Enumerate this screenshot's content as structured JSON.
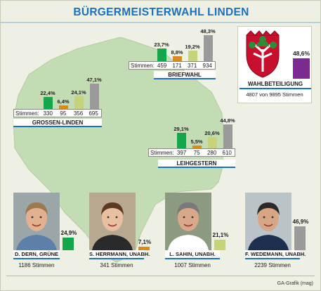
{
  "title": "BÜRGERMEISTERWAHL LINDEN",
  "colors": {
    "green": "#15a54a",
    "orange": "#d98a1f",
    "lightgreen": "#c5d37a",
    "grey": "#9a9a9a",
    "purple": "#7b2b8f",
    "blue": "#1d6fb8",
    "map": "#c4dcb4"
  },
  "stimmen_label": "Stimmen:",
  "chart_data": [
    {
      "type": "bar",
      "title": "BRIEFWAHL",
      "categories": [
        "D. Dern, Grüne",
        "S. Herrmann, unabh.",
        "L. Sahin, unabh.",
        "F. Wedemann, unabh."
      ],
      "values": [
        23.7,
        8.8,
        19.2,
        48.3
      ],
      "value_labels": [
        "23,7%",
        "8,8%",
        "19,2%",
        "48,3%"
      ],
      "votes": [
        "459",
        "171",
        "371",
        "934"
      ]
    },
    {
      "type": "bar",
      "title": "GROSSEN-LINDEN",
      "categories": [
        "D. Dern, Grüne",
        "S. Herrmann, unabh.",
        "L. Sahin, unabh.",
        "F. Wedemann, unabh."
      ],
      "values": [
        22.4,
        6.4,
        24.1,
        47.1
      ],
      "value_labels": [
        "22,4%",
        "6,4%",
        "24,1%",
        "47,1%"
      ],
      "votes": [
        "330",
        "95",
        "356",
        "695"
      ]
    },
    {
      "type": "bar",
      "title": "LEIHGESTERN",
      "categories": [
        "D. Dern, Grüne",
        "S. Herrmann, unabh.",
        "L. Sahin, unabh.",
        "F. Wedemann, unabh."
      ],
      "values": [
        29.1,
        5.5,
        20.6,
        44.8
      ],
      "value_labels": [
        "29,1%",
        "5,5%",
        "20,6%",
        "44,8%"
      ],
      "votes": [
        "397",
        "75",
        "280",
        "610"
      ]
    },
    {
      "type": "bar",
      "title": "WAHLBETEILIGUNG",
      "categories": [
        "Wahlbeteiligung"
      ],
      "values": [
        48.6
      ],
      "value_labels": [
        "48,6%"
      ],
      "note": "4807 von 9895 Stimmen"
    },
    {
      "type": "bar",
      "title": "",
      "categories": [
        "D. DERN, GRÜNE",
        "S. HERRMANN, UNABH.",
        "L. SAHIN, UNABH.",
        "F. WEDEMANN, UNABH."
      ],
      "values": [
        24.9,
        7.1,
        21.1,
        46.9
      ],
      "value_labels": [
        "24,9%",
        "7,1%",
        "21,1%",
        "46,9%"
      ],
      "votes": [
        "1186 Stimmen",
        "341 Stimmen",
        "1007 Stimmen",
        "2239 Stimmen"
      ]
    }
  ],
  "footer": "GA-Grafik (mag)"
}
